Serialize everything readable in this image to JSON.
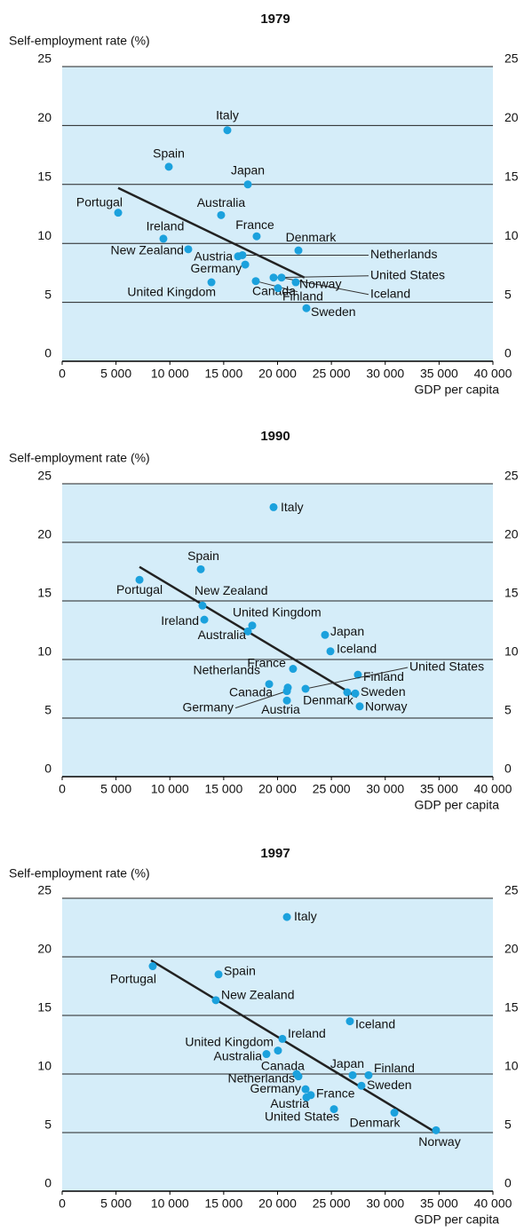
{
  "chart_data": [
    {
      "type": "scatter",
      "title": "1979",
      "y_label": "Self-employment rate (%)",
      "x_label": "GDP per capita",
      "xlim": [
        0,
        40000
      ],
      "ylim": [
        0,
        25
      ],
      "y2lim": [
        0,
        25
      ],
      "xticks": [
        0,
        {
          "value": 5000,
          "label": "5 000"
        },
        {
          "value": 10000,
          "label": "10 000"
        },
        {
          "value": 15000,
          "label": "15 000"
        },
        {
          "value": 20000,
          "label": "20 000"
        },
        {
          "value": 25000,
          "label": "25 000"
        },
        {
          "value": 30000,
          "label": "30 000"
        },
        {
          "value": 35000,
          "label": "35 000"
        },
        {
          "value": 40000,
          "label": "40 000"
        }
      ],
      "yticks": [
        0,
        5,
        10,
        15,
        20,
        25
      ],
      "y2ticks": [
        0,
        5,
        10,
        15,
        20,
        25
      ],
      "grid": true,
      "color": "#1ba1dd",
      "background": "#d5edf9",
      "points": [
        {
          "label": "Italy",
          "x": 15340,
          "y": 19.6
        },
        {
          "label": "Spain",
          "x": 9900,
          "y": 16.5
        },
        {
          "label": "Japan",
          "x": 17240,
          "y": 15.0
        },
        {
          "label": "Portugal",
          "x": 5200,
          "y": 12.6
        },
        {
          "label": "Australia",
          "x": 14760,
          "y": 12.4
        },
        {
          "label": "Ireland",
          "x": 9400,
          "y": 10.4
        },
        {
          "label": "France",
          "x": 18060,
          "y": 10.6
        },
        {
          "label": "Denmark",
          "x": 21940,
          "y": 9.4
        },
        {
          "label": "New Zealand",
          "x": 11710,
          "y": 9.5
        },
        {
          "label": "Austria",
          "x": 16330,
          "y": 8.9
        },
        {
          "label": "Netherlands",
          "x": 16740,
          "y": 9.0
        },
        {
          "label": "Germany",
          "x": 17000,
          "y": 8.2
        },
        {
          "label": "United States",
          "x": 19630,
          "y": 7.1
        },
        {
          "label": "Iceland",
          "x": 20370,
          "y": 7.1
        },
        {
          "label": "Norway",
          "x": 21690,
          "y": 6.7
        },
        {
          "label": "Canada",
          "x": 17980,
          "y": 6.8
        },
        {
          "label": "United Kingdom",
          "x": 13860,
          "y": 6.7
        },
        {
          "label": "Finland",
          "x": 20040,
          "y": 6.2
        },
        {
          "label": "Sweden",
          "x": 22680,
          "y": 4.5
        }
      ],
      "trend_line": {
        "x": [
          5200,
          22500
        ],
        "y": [
          14.7,
          7.1
        ]
      }
    },
    {
      "type": "scatter",
      "title": "1990",
      "y_label": "Self-employment rate (%)",
      "x_label": "GDP per capita",
      "xlim": [
        0,
        40000
      ],
      "ylim": [
        0,
        25
      ],
      "y2lim": [
        0,
        25
      ],
      "xticks": [
        0,
        {
          "value": 5000,
          "label": "5 000"
        },
        {
          "value": 10000,
          "label": "10 000"
        },
        {
          "value": 15000,
          "label": "15 000"
        },
        {
          "value": 20000,
          "label": "20 000"
        },
        {
          "value": 25000,
          "label": "25 000"
        },
        {
          "value": 30000,
          "label": "30 000"
        },
        {
          "value": 35000,
          "label": "35 000"
        },
        {
          "value": 40000,
          "label": "40 000"
        }
      ],
      "yticks": [
        0,
        5,
        10,
        15,
        20,
        25
      ],
      "y2ticks": [
        0,
        5,
        10,
        15,
        20,
        25
      ],
      "grid": true,
      "color": "#1ba1dd",
      "background": "#d5edf9",
      "points": [
        {
          "label": "Italy",
          "x": 19630,
          "y": 23.0
        },
        {
          "label": "Spain",
          "x": 12870,
          "y": 17.7
        },
        {
          "label": "Portugal",
          "x": 7180,
          "y": 16.8
        },
        {
          "label": "New Zealand",
          "x": 13030,
          "y": 14.6
        },
        {
          "label": "Ireland",
          "x": 13200,
          "y": 13.4
        },
        {
          "label": "United Kingdom",
          "x": 17650,
          "y": 12.9
        },
        {
          "label": "Australia",
          "x": 17240,
          "y": 12.4
        },
        {
          "label": "Japan",
          "x": 24410,
          "y": 12.1
        },
        {
          "label": "Iceland",
          "x": 24910,
          "y": 10.7
        },
        {
          "label": "France",
          "x": 21440,
          "y": 9.2
        },
        {
          "label": "Finland",
          "x": 27460,
          "y": 8.7
        },
        {
          "label": "Netherlands",
          "x": 19220,
          "y": 7.9
        },
        {
          "label": "Canada",
          "x": 20950,
          "y": 7.6
        },
        {
          "label": "Germany",
          "x": 20870,
          "y": 7.3
        },
        {
          "label": "United States",
          "x": 22600,
          "y": 7.5
        },
        {
          "label": "Denmark",
          "x": 26470,
          "y": 7.2
        },
        {
          "label": "Sweden",
          "x": 27220,
          "y": 7.1
        },
        {
          "label": "Austria",
          "x": 20870,
          "y": 6.5
        },
        {
          "label": "Norway",
          "x": 27630,
          "y": 6.0
        }
      ],
      "trend_line": {
        "x": [
          7180,
          27380
        ],
        "y": [
          17.9,
          6.8
        ]
      }
    },
    {
      "type": "scatter",
      "title": "1997",
      "y_label": "Self-employment rate (%)",
      "x_label": "GDP per capita",
      "xlim": [
        0,
        40000
      ],
      "ylim": [
        0,
        25
      ],
      "y2lim": [
        0,
        25
      ],
      "xticks": [
        0,
        {
          "value": 5000,
          "label": "5 000"
        },
        {
          "value": 10000,
          "label": "10 000"
        },
        {
          "value": 15000,
          "label": "15 000"
        },
        {
          "value": 20000,
          "label": "20 000"
        },
        {
          "value": 25000,
          "label": "25 000"
        },
        {
          "value": 30000,
          "label": "30 000"
        },
        {
          "value": 35000,
          "label": "35 000"
        },
        {
          "value": 40000,
          "label": "40 000"
        }
      ],
      "yticks": [
        0,
        5,
        10,
        15,
        20,
        25
      ],
      "y2ticks": [
        0,
        5,
        10,
        15,
        20,
        25
      ],
      "grid": true,
      "color": "#1ba1dd",
      "background": "#d5edf9",
      "points": [
        {
          "label": "Italy",
          "x": 20870,
          "y": 23.4
        },
        {
          "label": "Portugal",
          "x": 8410,
          "y": 19.2
        },
        {
          "label": "Spain",
          "x": 14520,
          "y": 18.5
        },
        {
          "label": "New Zealand",
          "x": 14270,
          "y": 16.3
        },
        {
          "label": "Iceland",
          "x": 26720,
          "y": 14.5
        },
        {
          "label": "Ireland",
          "x": 20450,
          "y": 13.0
        },
        {
          "label": "United Kingdom",
          "x": 20040,
          "y": 12.0
        },
        {
          "label": "Australia",
          "x": 18970,
          "y": 11.7
        },
        {
          "label": "Canada",
          "x": 21770,
          "y": 10.0
        },
        {
          "label": "Japan",
          "x": 26970,
          "y": 9.9
        },
        {
          "label": "Finland",
          "x": 28450,
          "y": 9.9
        },
        {
          "label": "Netherlands",
          "x": 21940,
          "y": 9.8
        },
        {
          "label": "Sweden",
          "x": 27790,
          "y": 9.0
        },
        {
          "label": "Germany",
          "x": 22600,
          "y": 8.7
        },
        {
          "label": "France",
          "x": 23090,
          "y": 8.2
        },
        {
          "label": "Austria",
          "x": 22680,
          "y": 8.0
        },
        {
          "label": "United States",
          "x": 25240,
          "y": 7.0
        },
        {
          "label": "Denmark",
          "x": 30850,
          "y": 6.7
        },
        {
          "label": "Norway",
          "x": 34720,
          "y": 5.2
        }
      ],
      "trend_line": {
        "x": [
          8250,
          34720
        ],
        "y": [
          19.7,
          5.0
        ]
      }
    }
  ]
}
